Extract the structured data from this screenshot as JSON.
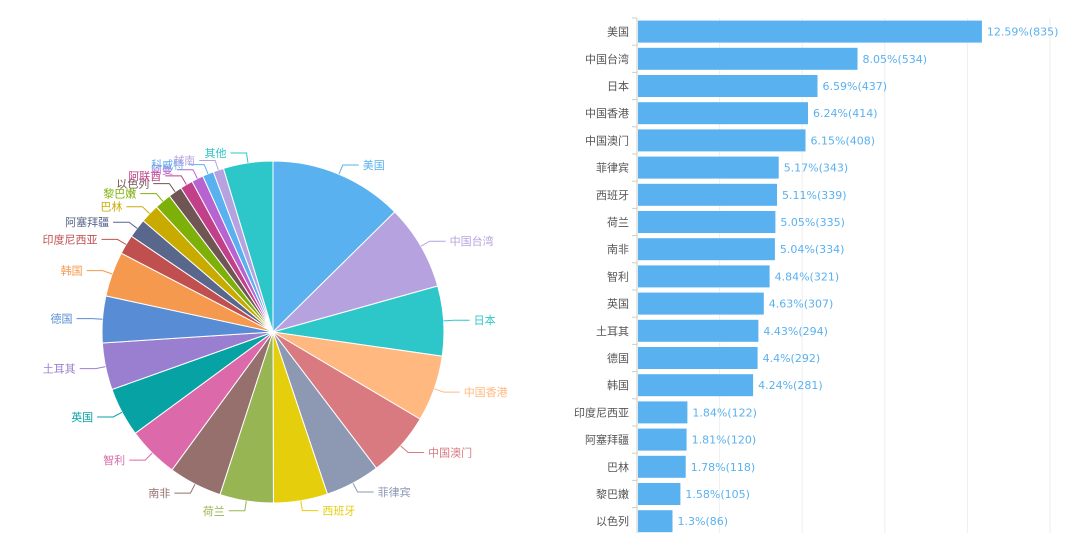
{
  "chart_data": [
    {
      "type": "pie",
      "slices": [
        {
          "name": "美国",
          "value": 835,
          "color": "#5ab1ef"
        },
        {
          "name": "中国台湾",
          "value": 534,
          "color": "#b6a2de"
        },
        {
          "name": "日本",
          "value": 437,
          "color": "#2ec7c9"
        },
        {
          "name": "中国香港",
          "value": 414,
          "color": "#ffb980"
        },
        {
          "name": "中国澳门",
          "value": 408,
          "color": "#d87a80"
        },
        {
          "name": "菲律宾",
          "value": 343,
          "color": "#8d98b3"
        },
        {
          "name": "西班牙",
          "value": 339,
          "color": "#e5cf0d"
        },
        {
          "name": "荷兰",
          "value": 335,
          "color": "#97b552"
        },
        {
          "name": "南非",
          "value": 334,
          "color": "#95706d"
        },
        {
          "name": "智利",
          "value": 321,
          "color": "#dc69aa"
        },
        {
          "name": "英国",
          "value": 307,
          "color": "#07a2a4"
        },
        {
          "name": "土耳其",
          "value": 294,
          "color": "#9a7fd1"
        },
        {
          "name": "德国",
          "value": 292,
          "color": "#588dd5"
        },
        {
          "name": "韩国",
          "value": 281,
          "color": "#f5994e"
        },
        {
          "name": "印度尼西亚",
          "value": 122,
          "color": "#c05050"
        },
        {
          "name": "阿塞拜疆",
          "value": 120,
          "color": "#59678c"
        },
        {
          "name": "巴林",
          "value": 118,
          "color": "#c9ab00"
        },
        {
          "name": "黎巴嫩",
          "value": 105,
          "color": "#7eb00a"
        },
        {
          "name": "以色列",
          "value": 86,
          "color": "#6f5553"
        },
        {
          "name": "阿联酋",
          "value": 80,
          "color": "#c14089"
        },
        {
          "name": "阿曼",
          "value": 74,
          "color": "#b864d0"
        },
        {
          "name": "科威特",
          "value": 70,
          "color": "#5ab1ef"
        },
        {
          "name": "越南",
          "value": 66,
          "color": "#b6a2de"
        },
        {
          "name": "其他",
          "value": 310,
          "color": "#2ec7c9"
        }
      ]
    },
    {
      "type": "bar",
      "orientation": "horizontal",
      "bar_color": "#5ab1ef",
      "label_color": "#5ab1ef",
      "categories": [
        "美国",
        "中国台湾",
        "日本",
        "中国香港",
        "中国澳门",
        "菲律宾",
        "西班牙",
        "荷兰",
        "南非",
        "智利",
        "英国",
        "土耳其",
        "德国",
        "韩国",
        "印度尼西亚",
        "阿塞拜疆",
        "巴林",
        "黎巴嫩",
        "以色列"
      ],
      "values": [
        835,
        534,
        437,
        414,
        408,
        343,
        339,
        335,
        334,
        321,
        307,
        294,
        292,
        281,
        122,
        120,
        118,
        105,
        86
      ],
      "labels": [
        "12.59%(835)",
        "8.05%(534)",
        "6.59%(437)",
        "6.24%(414)",
        "6.15%(408)",
        "5.17%(343)",
        "5.11%(339)",
        "5.05%(335)",
        "5.04%(334)",
        "4.84%(321)",
        "4.63%(307)",
        "4.43%(294)",
        "4.4%(292)",
        "4.24%(281)",
        "1.84%(122)",
        "1.81%(120)",
        "1.78%(118)",
        "1.58%(105)",
        "1.3%(86)"
      ],
      "xlim": [
        0,
        1000
      ],
      "grid": true
    }
  ]
}
